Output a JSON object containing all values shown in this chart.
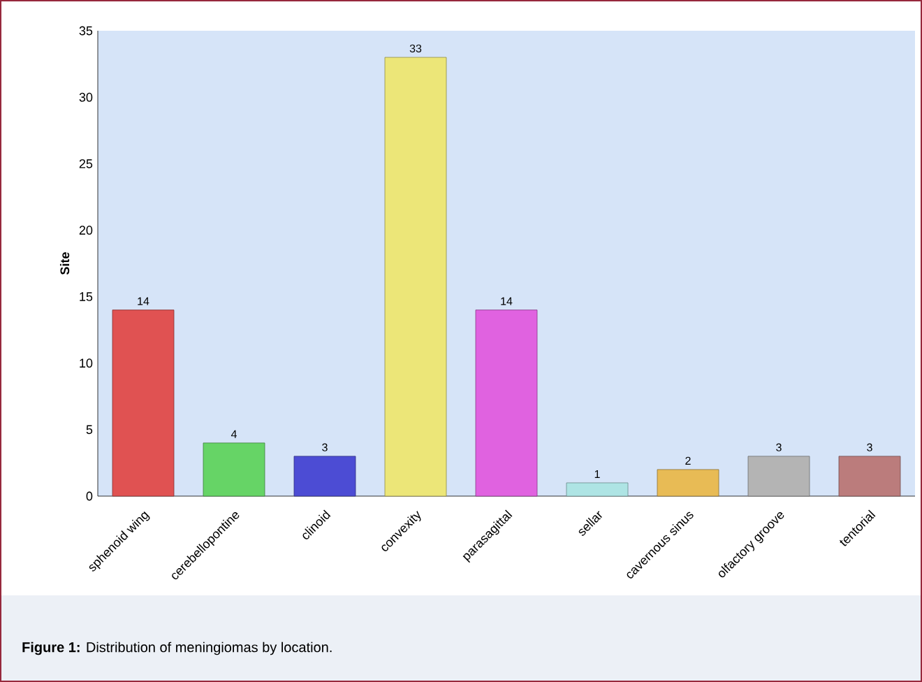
{
  "chart_data": {
    "type": "bar",
    "ylabel": "Site",
    "categories": [
      "sphenoid wing",
      "cerebellopontine",
      "clinoid",
      "convexity",
      "parasagittal",
      "sellar",
      "cavernous sinus",
      "olfactory groove",
      "tentorial"
    ],
    "values": [
      14,
      4,
      3,
      33,
      14,
      1,
      2,
      3,
      3
    ],
    "colors": [
      "#e05252",
      "#66d466",
      "#4c4cd4",
      "#ece678",
      "#e062e0",
      "#aee4e4",
      "#e8bb55",
      "#b4b4b4",
      "#bb7c7c"
    ],
    "ylim": [
      0,
      35
    ],
    "yticks": [
      0,
      5,
      10,
      15,
      20,
      25,
      30,
      35
    ],
    "data_labels": true,
    "grid": false,
    "annotations": [
      "**Figure 1:** Distribution of meningiomas by location."
    ]
  }
}
